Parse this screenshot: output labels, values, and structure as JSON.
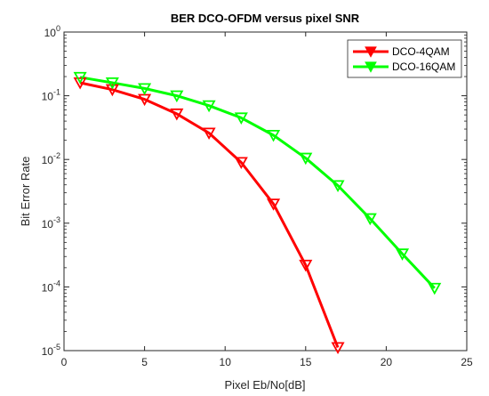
{
  "chart_data": {
    "type": "line",
    "title": "BER DCO-OFDM versus pixel SNR",
    "xlabel": "Pixel Eb/No[dB]",
    "ylabel": "Bit Error Rate",
    "xlim": [
      0,
      25
    ],
    "ylim": [
      1e-05,
      1
    ],
    "yscale": "log",
    "grid": false,
    "legend_position": "top-right",
    "x_ticks": [
      0,
      5,
      10,
      15,
      20,
      25
    ],
    "x_tick_labels": [
      "0",
      "5",
      "10",
      "15",
      "20",
      "25"
    ],
    "y_ticks": [
      {
        "value": 1e-05,
        "base": "10",
        "exp": "-5"
      },
      {
        "value": 0.0001,
        "base": "10",
        "exp": "-4"
      },
      {
        "value": 0.001,
        "base": "10",
        "exp": "-3"
      },
      {
        "value": 0.01,
        "base": "10",
        "exp": "-2"
      },
      {
        "value": 0.1,
        "base": "10",
        "exp": "-1"
      },
      {
        "value": 1,
        "base": "10",
        "exp": "0"
      }
    ],
    "series": [
      {
        "name": "DCO-4QAM",
        "color": "#ff0000",
        "marker": "triangle-down",
        "x": [
          1,
          3,
          5,
          7,
          9,
          11,
          13,
          15,
          17
        ],
        "y": [
          0.16,
          0.125,
          0.088,
          0.052,
          0.026,
          0.009,
          0.002,
          0.00022,
          1.12e-05
        ]
      },
      {
        "name": "DCO-16QAM",
        "color": "#00ff00",
        "marker": "triangle-down",
        "x": [
          1,
          3,
          5,
          7,
          9,
          11,
          13,
          15,
          17,
          19,
          21,
          23
        ],
        "y": [
          0.195,
          0.16,
          0.13,
          0.1,
          0.07,
          0.045,
          0.024,
          0.0105,
          0.0039,
          0.00118,
          0.00033,
          9.55e-05
        ]
      }
    ]
  }
}
